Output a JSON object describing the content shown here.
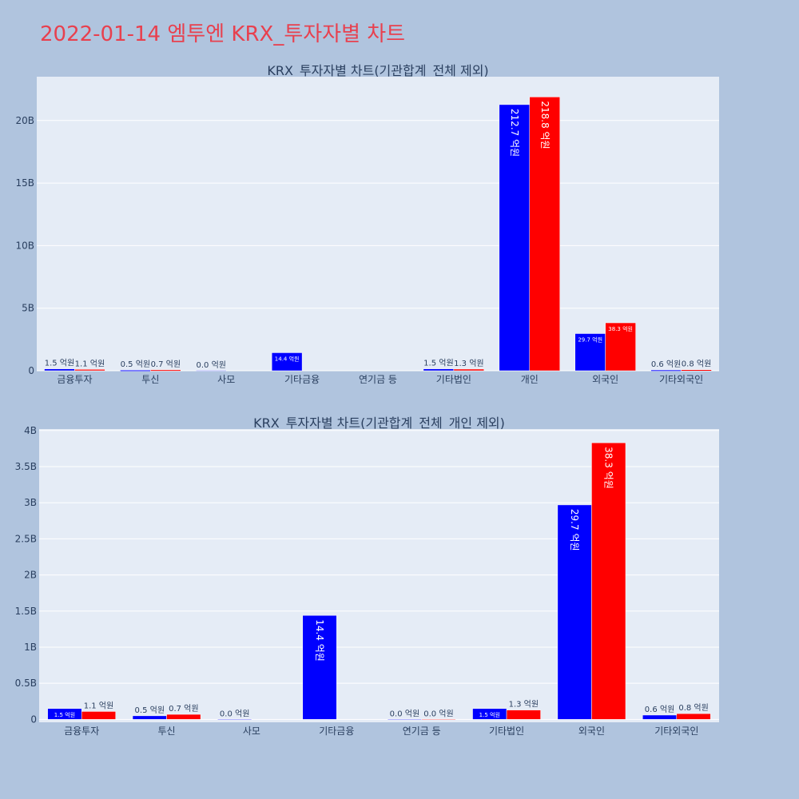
{
  "page": {
    "title": "2022-01-14 엠투엔 KRX_투자자별 차트"
  },
  "colors": {
    "series_a": "#0000ff",
    "series_b": "#ff0000",
    "plot_bg": "#e5ecf6",
    "page_bg": "#b0c4de"
  },
  "chart_data": [
    {
      "type": "bar",
      "title": "KRX_투자자별 차트(기관합계_전체 제외)",
      "categories": [
        "금융투자",
        "투신",
        "사모",
        "기타금융",
        "연기금 등",
        "기타법인",
        "개인",
        "외국인",
        "기타외국인"
      ],
      "series": [
        {
          "values": [
            0.15,
            0.05,
            0.0,
            1.44,
            null,
            0.15,
            21.27,
            2.97,
            0.06
          ],
          "labels": [
            "1.5 억원",
            "0.5 억원",
            "0.0 억원",
            "14.4 억원",
            "",
            "1.5 억원",
            "212.7 억원",
            "29.7 억원",
            "0.6 억원"
          ]
        },
        {
          "values": [
            0.11,
            0.07,
            null,
            null,
            null,
            0.13,
            21.88,
            3.83,
            0.08
          ],
          "labels": [
            "1.1 억원",
            "0.7 억원",
            "",
            "",
            "",
            "1.3 억원",
            "218.8 억원",
            "38.3 억원",
            "0.8 억원"
          ]
        }
      ],
      "yticks": [
        0,
        5,
        10,
        15,
        20
      ],
      "ytick_labels": [
        "0",
        "5B",
        "10B",
        "15B",
        "20B"
      ],
      "ylim": [
        0,
        23.5
      ],
      "grid": true,
      "legend": "none"
    },
    {
      "type": "bar",
      "title": "KRX_투자자별 차트(기관합계_전체_개인 제외)",
      "categories": [
        "금융투자",
        "투신",
        "사모",
        "기타금융",
        "연기금 등",
        "기타법인",
        "외국인",
        "기타외국인"
      ],
      "series": [
        {
          "values": [
            0.15,
            0.05,
            0.0,
            1.44,
            0.0,
            0.15,
            2.97,
            0.06
          ],
          "labels": [
            "1.5 억원",
            "0.5 억원",
            "0.0 억원",
            "14.4 억원",
            "0.0 억원",
            "1.5 억원",
            "29.7 억원",
            "0.6 억원"
          ]
        },
        {
          "values": [
            0.11,
            0.07,
            null,
            null,
            0.0,
            0.13,
            3.83,
            0.08
          ],
          "labels": [
            "1.1 억원",
            "0.7 억원",
            "",
            "",
            "0.0 억원",
            "1.3 억원",
            "38.3 억원",
            "0.8 억원"
          ]
        }
      ],
      "yticks": [
        0,
        0.5,
        1,
        1.5,
        2,
        2.5,
        3,
        3.5,
        4
      ],
      "ytick_labels": [
        "0",
        "0.5B",
        "1B",
        "1.5B",
        "2B",
        "2.5B",
        "3B",
        "3.5B",
        "4B"
      ],
      "ylim": [
        -0.04,
        4.02
      ],
      "grid": true,
      "legend": "none"
    }
  ]
}
